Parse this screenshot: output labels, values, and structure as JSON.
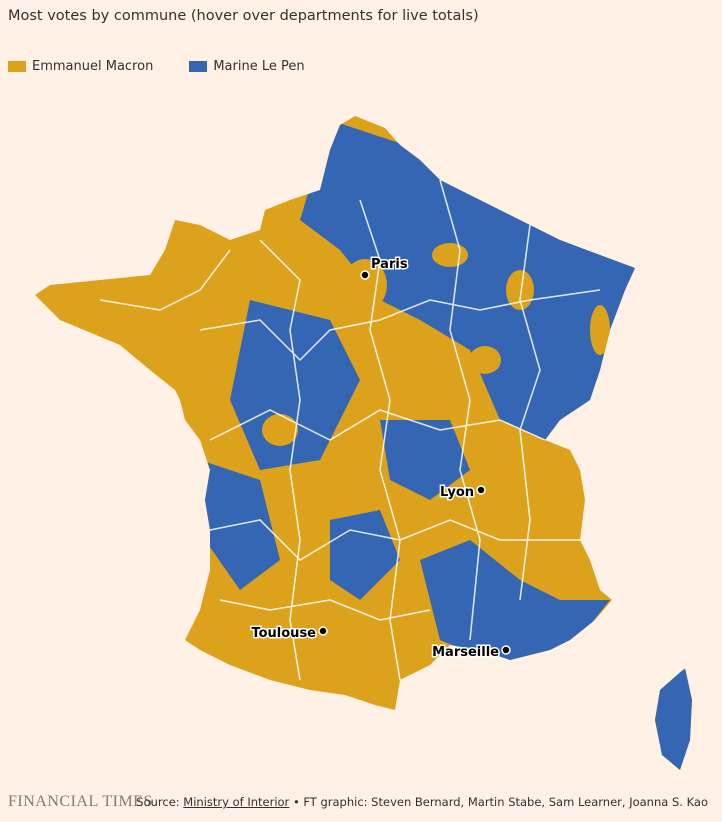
{
  "header": {
    "title": "Most votes by commune (hover over departments for live totals)"
  },
  "legend": [
    {
      "name": "Emmanuel Macron",
      "color": "#dca21c"
    },
    {
      "name": "Marine Le Pen",
      "color": "#3466b4"
    }
  ],
  "cities": [
    {
      "label": "Paris"
    },
    {
      "label": "Lyon"
    },
    {
      "label": "Toulouse"
    },
    {
      "label": "Marseille"
    }
  ],
  "footer": {
    "logo": "FINANCIAL TIMES",
    "source_prefix": "Source:",
    "source_link": "Ministry of Interior",
    "credits": "• FT graphic: Steven Bernard, Martin Stabe, Sam Learner, Joanna S. Kao"
  }
}
